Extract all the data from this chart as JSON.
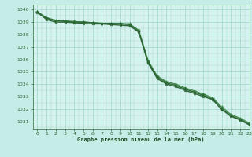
{
  "background_color": "#c5ece6",
  "plot_bg_color": "#d6f2ee",
  "grid_color": "#9dd4cc",
  "line_color_dark": "#2d6637",
  "line_color_mid": "#3d8845",
  "xlabel": "Graphe pression niveau de la mer (hPa)",
  "xlabel_color": "#1a4a22",
  "ylim": [
    1030.4,
    1040.4
  ],
  "xlim": [
    -0.5,
    23
  ],
  "yticks": [
    1031,
    1032,
    1033,
    1034,
    1035,
    1036,
    1037,
    1038,
    1039,
    1040
  ],
  "xticks": [
    0,
    1,
    2,
    3,
    4,
    5,
    6,
    7,
    8,
    9,
    10,
    11,
    12,
    13,
    14,
    15,
    16,
    17,
    18,
    19,
    20,
    21,
    22,
    23
  ],
  "series1": [
    1039.75,
    1039.3,
    1039.1,
    1039.05,
    1039.0,
    1039.0,
    1038.95,
    1038.9,
    1038.9,
    1038.85,
    1038.8,
    1038.25,
    1035.8,
    1034.55,
    1034.1,
    1033.9,
    1033.6,
    1033.35,
    1033.1,
    1032.8,
    1032.0,
    1031.45,
    1031.15,
    1030.75
  ],
  "series2": [
    1039.85,
    1039.35,
    1039.15,
    1039.1,
    1039.05,
    1039.0,
    1038.95,
    1038.9,
    1038.9,
    1038.9,
    1038.85,
    1038.35,
    1035.9,
    1034.65,
    1034.2,
    1034.0,
    1033.7,
    1033.45,
    1033.2,
    1032.9,
    1032.15,
    1031.55,
    1031.25,
    1030.85
  ],
  "series3": [
    1039.8,
    1039.2,
    1039.0,
    1039.0,
    1038.95,
    1038.9,
    1038.85,
    1038.85,
    1038.8,
    1038.75,
    1038.7,
    1038.2,
    1035.7,
    1034.45,
    1034.0,
    1033.8,
    1033.5,
    1033.25,
    1033.0,
    1032.75,
    1031.95,
    1031.4,
    1031.1,
    1030.7
  ]
}
